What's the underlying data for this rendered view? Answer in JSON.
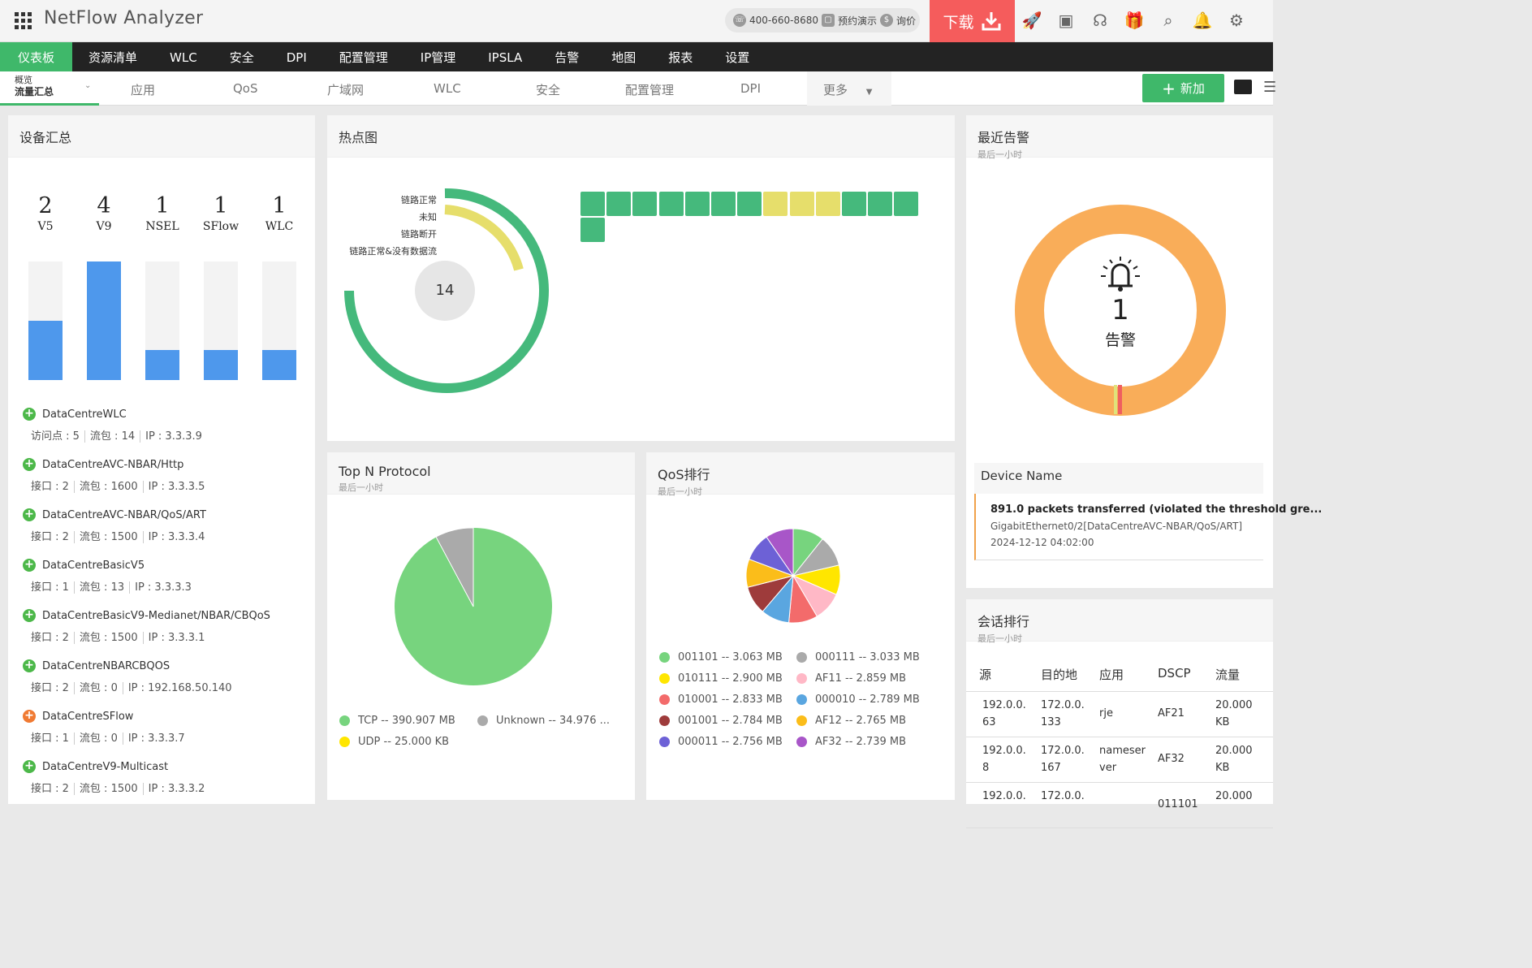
{
  "app": {
    "title": "NetFlow Analyzer"
  },
  "contact": {
    "phone": "400-660-8680",
    "demo": "预约演示",
    "price": "询价"
  },
  "download_label": "下载",
  "main_nav": [
    "仪表板",
    "资源清单",
    "WLC",
    "安全",
    "DPI",
    "配置管理",
    "IP管理",
    "IPSLA",
    "告警",
    "地图",
    "报表",
    "设置"
  ],
  "sub_nav": {
    "first_line1": "概览",
    "first_line2": "流量汇总",
    "tabs": [
      "应用",
      "QoS",
      "广域网",
      "WLC",
      "安全",
      "配置管理",
      "DPI"
    ],
    "more": "更多",
    "add": "新加"
  },
  "device_summary": {
    "title": "设备汇总",
    "counts": [
      {
        "value": "2",
        "label": "V5",
        "fill": 0.5
      },
      {
        "value": "4",
        "label": "V9",
        "fill": 1.0
      },
      {
        "value": "1",
        "label": "NSEL",
        "fill": 0.25
      },
      {
        "value": "1",
        "label": "SFlow",
        "fill": 0.25
      },
      {
        "value": "1",
        "label": "WLC",
        "fill": 0.25
      }
    ],
    "devices": [
      {
        "name": "DataCentreWLC",
        "f1": "访问点 : 5",
        "f2": "流包 : 14",
        "f3": "IP : 3.3.3.9",
        "type": "green"
      },
      {
        "name": "DataCentreAVC-NBAR/Http",
        "f1": "接口 : 2",
        "f2": "流包 : 1600",
        "f3": "IP : 3.3.3.5",
        "type": "green"
      },
      {
        "name": "DataCentreAVC-NBAR/QoS/ART",
        "f1": "接口 : 2",
        "f2": "流包 : 1500",
        "f3": "IP : 3.3.3.4",
        "type": "green"
      },
      {
        "name": "DataCentreBasicV5",
        "f1": "接口 : 1",
        "f2": "流包 : 13",
        "f3": "IP : 3.3.3.3",
        "type": "green"
      },
      {
        "name": "DataCentreBasicV9-Medianet/NBAR/CBQoS",
        "f1": "接口 : 2",
        "f2": "流包 : 1500",
        "f3": "IP : 3.3.3.1",
        "type": "green"
      },
      {
        "name": "DataCentreNBARCBQOS",
        "f1": "接口 : 2",
        "f2": "流包 : 0",
        "f3": "IP : 192.168.50.140",
        "type": "green"
      },
      {
        "name": "DataCentreSFlow",
        "f1": "接口 : 1",
        "f2": "流包 : 0",
        "f3": "IP : 3.3.3.7",
        "type": "orange"
      },
      {
        "name": "DataCentreV9-Multicast",
        "f1": "接口 : 2",
        "f2": "流包 : 1500",
        "f3": "IP : 3.3.3.2",
        "type": "green"
      }
    ]
  },
  "heatmap": {
    "title": "热点图",
    "center": "14",
    "legend": [
      "链路正常",
      "未知",
      "链路断开",
      "链路正常&没有数据流"
    ],
    "colors": {
      "up": "#45b97c",
      "unknown": "#e6de6b"
    },
    "cells": [
      "up",
      "up",
      "up",
      "up",
      "up",
      "up",
      "up",
      "unknown",
      "unknown",
      "unknown",
      "up",
      "up",
      "up",
      "up"
    ]
  },
  "alerts": {
    "title": "最近告警",
    "subtitle": "最后一小时",
    "count": "1",
    "count_label": "告警",
    "column": "Device Name",
    "item_title": "891.0 packets transferred (violated the threshold gre...",
    "item_sub": "GigabitEthernet0/2[DataCentreAVC-NBAR/QoS/ART]",
    "item_time": "2024-12-12 04:02:00"
  },
  "top_protocol": {
    "title": "Top N Protocol",
    "subtitle": "最后一小时",
    "legend": [
      {
        "label": "TCP -- 390.907 MB",
        "color": "#77d47e"
      },
      {
        "label": "Unknown -- 34.976 ...",
        "color": "#aaaaaa"
      },
      {
        "label": "UDP -- 25.000 KB",
        "color": "#ffe600"
      }
    ]
  },
  "qos": {
    "title": "QoS排行",
    "subtitle": "最后一小时",
    "legend": [
      {
        "label": "001101 -- 3.063 MB",
        "color": "#77d47e"
      },
      {
        "label": "000111 -- 3.033 MB",
        "color": "#aaaaaa"
      },
      {
        "label": "010111 -- 2.900 MB",
        "color": "#ffe600"
      },
      {
        "label": "AF11 -- 2.859 MB",
        "color": "#ffb8c6"
      },
      {
        "label": "010001 -- 2.833 MB",
        "color": "#f36b6b"
      },
      {
        "label": "000010 -- 2.789 MB",
        "color": "#5aa6e0"
      },
      {
        "label": "001001 -- 2.784 MB",
        "color": "#9e3b3b"
      },
      {
        "label": "AF12 -- 2.765 MB",
        "color": "#fbbd1a"
      },
      {
        "label": "000011 -- 2.756 MB",
        "color": "#6d61d6"
      },
      {
        "label": "AF32 -- 2.739 MB",
        "color": "#a856c8"
      }
    ]
  },
  "conversations": {
    "title": "会话排行",
    "subtitle": "最后一小时",
    "headers": [
      "源",
      "目的地",
      "应用",
      "DSCP",
      "流量"
    ],
    "rows": [
      {
        "src1": "192.0.0.",
        "src2": "63",
        "dst1": "172.0.0.",
        "dst2": "133",
        "app1": "rje",
        "app2": "",
        "dscp": "AF21",
        "vol1": "20.000",
        "vol2": "KB"
      },
      {
        "src1": "192.0.0.",
        "src2": "8",
        "dst1": "172.0.0.",
        "dst2": "167",
        "app1": "nameser",
        "app2": "ver",
        "dscp": "AF32",
        "vol1": "20.000",
        "vol2": "KB"
      },
      {
        "src1": "192.0.0.",
        "src2": "",
        "dst1": "172.0.0.",
        "dst2": "",
        "app1": "",
        "app2": "",
        "dscp": "011101",
        "vol1": "20.000",
        "vol2": ""
      }
    ]
  }
}
